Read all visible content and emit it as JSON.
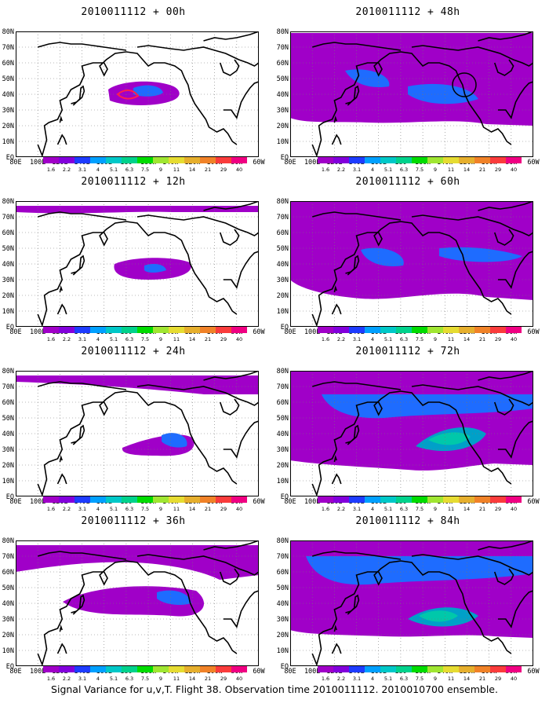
{
  "chart_data": [
    {
      "type": "heatmap",
      "title": "2010011112 + 00h",
      "lon_ticks": [
        "80E",
        "100E",
        "120E",
        "140E",
        "160E",
        "180",
        "160W",
        "140W",
        "120W",
        "100W",
        "80W",
        "60W"
      ],
      "lat_ticks": [
        "EQ",
        "10N",
        "20N",
        "30N",
        "40N",
        "50N",
        "60N",
        "70N",
        "80N"
      ],
      "extent": {
        "lon": [
          80,
          300
        ],
        "lat": [
          0,
          80
        ]
      }
    },
    {
      "type": "heatmap",
      "title": "2010011112 + 12h",
      "lon_ticks": [
        "80E",
        "100E",
        "120E",
        "140E",
        "160E",
        "180",
        "160W",
        "140W",
        "120W",
        "100W",
        "80W",
        "60W"
      ],
      "lat_ticks": [
        "EQ",
        "10N",
        "20N",
        "30N",
        "40N",
        "50N",
        "60N",
        "70N",
        "80N"
      ],
      "extent": {
        "lon": [
          80,
          300
        ],
        "lat": [
          0,
          80
        ]
      }
    },
    {
      "type": "heatmap",
      "title": "2010011112 + 24h",
      "lon_ticks": [
        "80E",
        "100E",
        "120E",
        "140E",
        "160E",
        "180",
        "160W",
        "140W",
        "120W",
        "100W",
        "80W",
        "60W"
      ],
      "lat_ticks": [
        "EQ",
        "10N",
        "20N",
        "30N",
        "40N",
        "50N",
        "60N",
        "70N",
        "80N"
      ],
      "extent": {
        "lon": [
          80,
          300
        ],
        "lat": [
          0,
          80
        ]
      }
    },
    {
      "type": "heatmap",
      "title": "2010011112 + 36h",
      "lon_ticks": [
        "80E",
        "100E",
        "120E",
        "140E",
        "160E",
        "180",
        "160W",
        "140W",
        "120W",
        "100W",
        "80W",
        "60W"
      ],
      "lat_ticks": [
        "EQ",
        "10N",
        "20N",
        "30N",
        "40N",
        "50N",
        "60N",
        "70N",
        "80N"
      ],
      "extent": {
        "lon": [
          80,
          300
        ],
        "lat": [
          0,
          80
        ]
      }
    },
    {
      "type": "heatmap",
      "title": "2010011112 + 48h",
      "lon_ticks": [
        "80E",
        "100E",
        "120E",
        "140E",
        "160E",
        "180",
        "160W",
        "140W",
        "120W",
        "100W",
        "80W",
        "60W"
      ],
      "lat_ticks": [
        "EQ",
        "10N",
        "20N",
        "30N",
        "40N",
        "50N",
        "60N",
        "70N",
        "80N"
      ],
      "extent": {
        "lon": [
          80,
          300
        ],
        "lat": [
          0,
          80
        ]
      }
    },
    {
      "type": "heatmap",
      "title": "2010011112 + 60h",
      "lon_ticks": [
        "80E",
        "100E",
        "120E",
        "140E",
        "160E",
        "180",
        "160W",
        "140W",
        "120W",
        "100W",
        "80W",
        "60W"
      ],
      "lat_ticks": [
        "EQ",
        "10N",
        "20N",
        "30N",
        "40N",
        "50N",
        "60N",
        "70N",
        "80N"
      ],
      "extent": {
        "lon": [
          80,
          300
        ],
        "lat": [
          0,
          80
        ]
      }
    },
    {
      "type": "heatmap",
      "title": "2010011112 + 72h",
      "lon_ticks": [
        "80E",
        "100E",
        "120E",
        "140E",
        "160E",
        "180",
        "160W",
        "140W",
        "120W",
        "100W",
        "80W",
        "60W"
      ],
      "lat_ticks": [
        "EQ",
        "10N",
        "20N",
        "30N",
        "40N",
        "50N",
        "60N",
        "70N",
        "80N"
      ],
      "extent": {
        "lon": [
          80,
          300
        ],
        "lat": [
          0,
          80
        ]
      }
    },
    {
      "type": "heatmap",
      "title": "2010011112 + 84h",
      "lon_ticks": [
        "80E",
        "100E",
        "120E",
        "140E",
        "160E",
        "180",
        "160W",
        "140W",
        "120W",
        "100W",
        "80W",
        "60W"
      ],
      "lat_ticks": [
        "EQ",
        "10N",
        "20N",
        "30N",
        "40N",
        "50N",
        "60N",
        "70N",
        "80N"
      ],
      "extent": {
        "lon": [
          80,
          300
        ],
        "lat": [
          0,
          80
        ]
      }
    }
  ],
  "colorbar": {
    "levels": [
      "1.6",
      "2.2",
      "3.1",
      "4",
      "5.1",
      "6.3",
      "7.5",
      "9",
      "11",
      "14",
      "21",
      "29",
      "40"
    ],
    "colors": [
      "#a000c8",
      "#8200dc",
      "#1e3cff",
      "#00a0ff",
      "#00c8c8",
      "#00d28c",
      "#00dc00",
      "#a0e632",
      "#e6dc32",
      "#e6af2d",
      "#f08228",
      "#fa3c3c",
      "#f00082"
    ]
  },
  "caption": "Signal Variance for u,v,T. Flight 38. Observation time 2010011112. 2010010700 ensemble."
}
